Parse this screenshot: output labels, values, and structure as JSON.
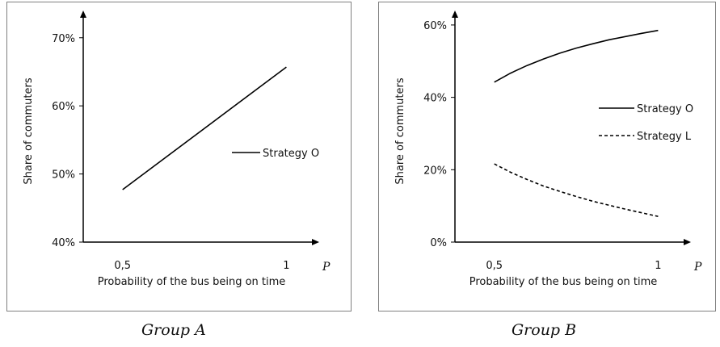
{
  "chart_data": [
    {
      "type": "line",
      "caption": "Group A",
      "xlabel": "Probability of the bus being on time",
      "x_axis_symbol": "P",
      "ylabel": "Share of commuters",
      "xlim": [
        0.38,
        1.1
      ],
      "ylim": [
        40,
        74
      ],
      "x_ticks": [
        {
          "value": 0.5,
          "label": "0,5"
        },
        {
          "value": 1,
          "label": "1"
        }
      ],
      "y_ticks": [
        {
          "value": 40,
          "label": "40%"
        },
        {
          "value": 50,
          "label": "50%"
        },
        {
          "value": 60,
          "label": "60%"
        },
        {
          "value": 70,
          "label": "70%"
        }
      ],
      "grid": false,
      "legend_position": "right",
      "series": [
        {
          "name": "Strategy O",
          "style": "solid",
          "color": "#000000",
          "x": [
            0.5,
            1
          ],
          "y": [
            47.7,
            65.7
          ]
        }
      ]
    },
    {
      "type": "line",
      "caption": "Group B",
      "xlabel": "Probability of the bus being on time",
      "x_axis_symbol": "P",
      "ylabel": "Share of commuters",
      "xlim": [
        0.38,
        1.1
      ],
      "ylim": [
        0,
        64
      ],
      "x_ticks": [
        {
          "value": 0.5,
          "label": "0,5"
        },
        {
          "value": 1,
          "label": "1"
        }
      ],
      "y_ticks": [
        {
          "value": 0,
          "label": "0%"
        },
        {
          "value": 20,
          "label": "20%"
        },
        {
          "value": 40,
          "label": "40%"
        },
        {
          "value": 60,
          "label": "60%"
        }
      ],
      "grid": false,
      "legend_position": "right",
      "series": [
        {
          "name": "Strategy O",
          "style": "solid",
          "color": "#000000",
          "x": [
            0.5,
            0.55,
            0.6,
            0.65,
            0.7,
            0.75,
            0.8,
            0.85,
            0.9,
            0.95,
            1.0
          ],
          "y": [
            44.2,
            46.7,
            48.8,
            50.6,
            52.2,
            53.6,
            54.8,
            55.9,
            56.8,
            57.7,
            58.5
          ]
        },
        {
          "name": "Strategy L",
          "style": "dashed",
          "color": "#000000",
          "x": [
            0.5,
            0.55,
            0.6,
            0.65,
            0.7,
            0.75,
            0.8,
            0.85,
            0.9,
            0.95,
            1.0
          ],
          "y": [
            21.6,
            19.3,
            17.3,
            15.5,
            14.0,
            12.6,
            11.3,
            10.2,
            9.1,
            8.1,
            7.1
          ]
        }
      ]
    }
  ]
}
